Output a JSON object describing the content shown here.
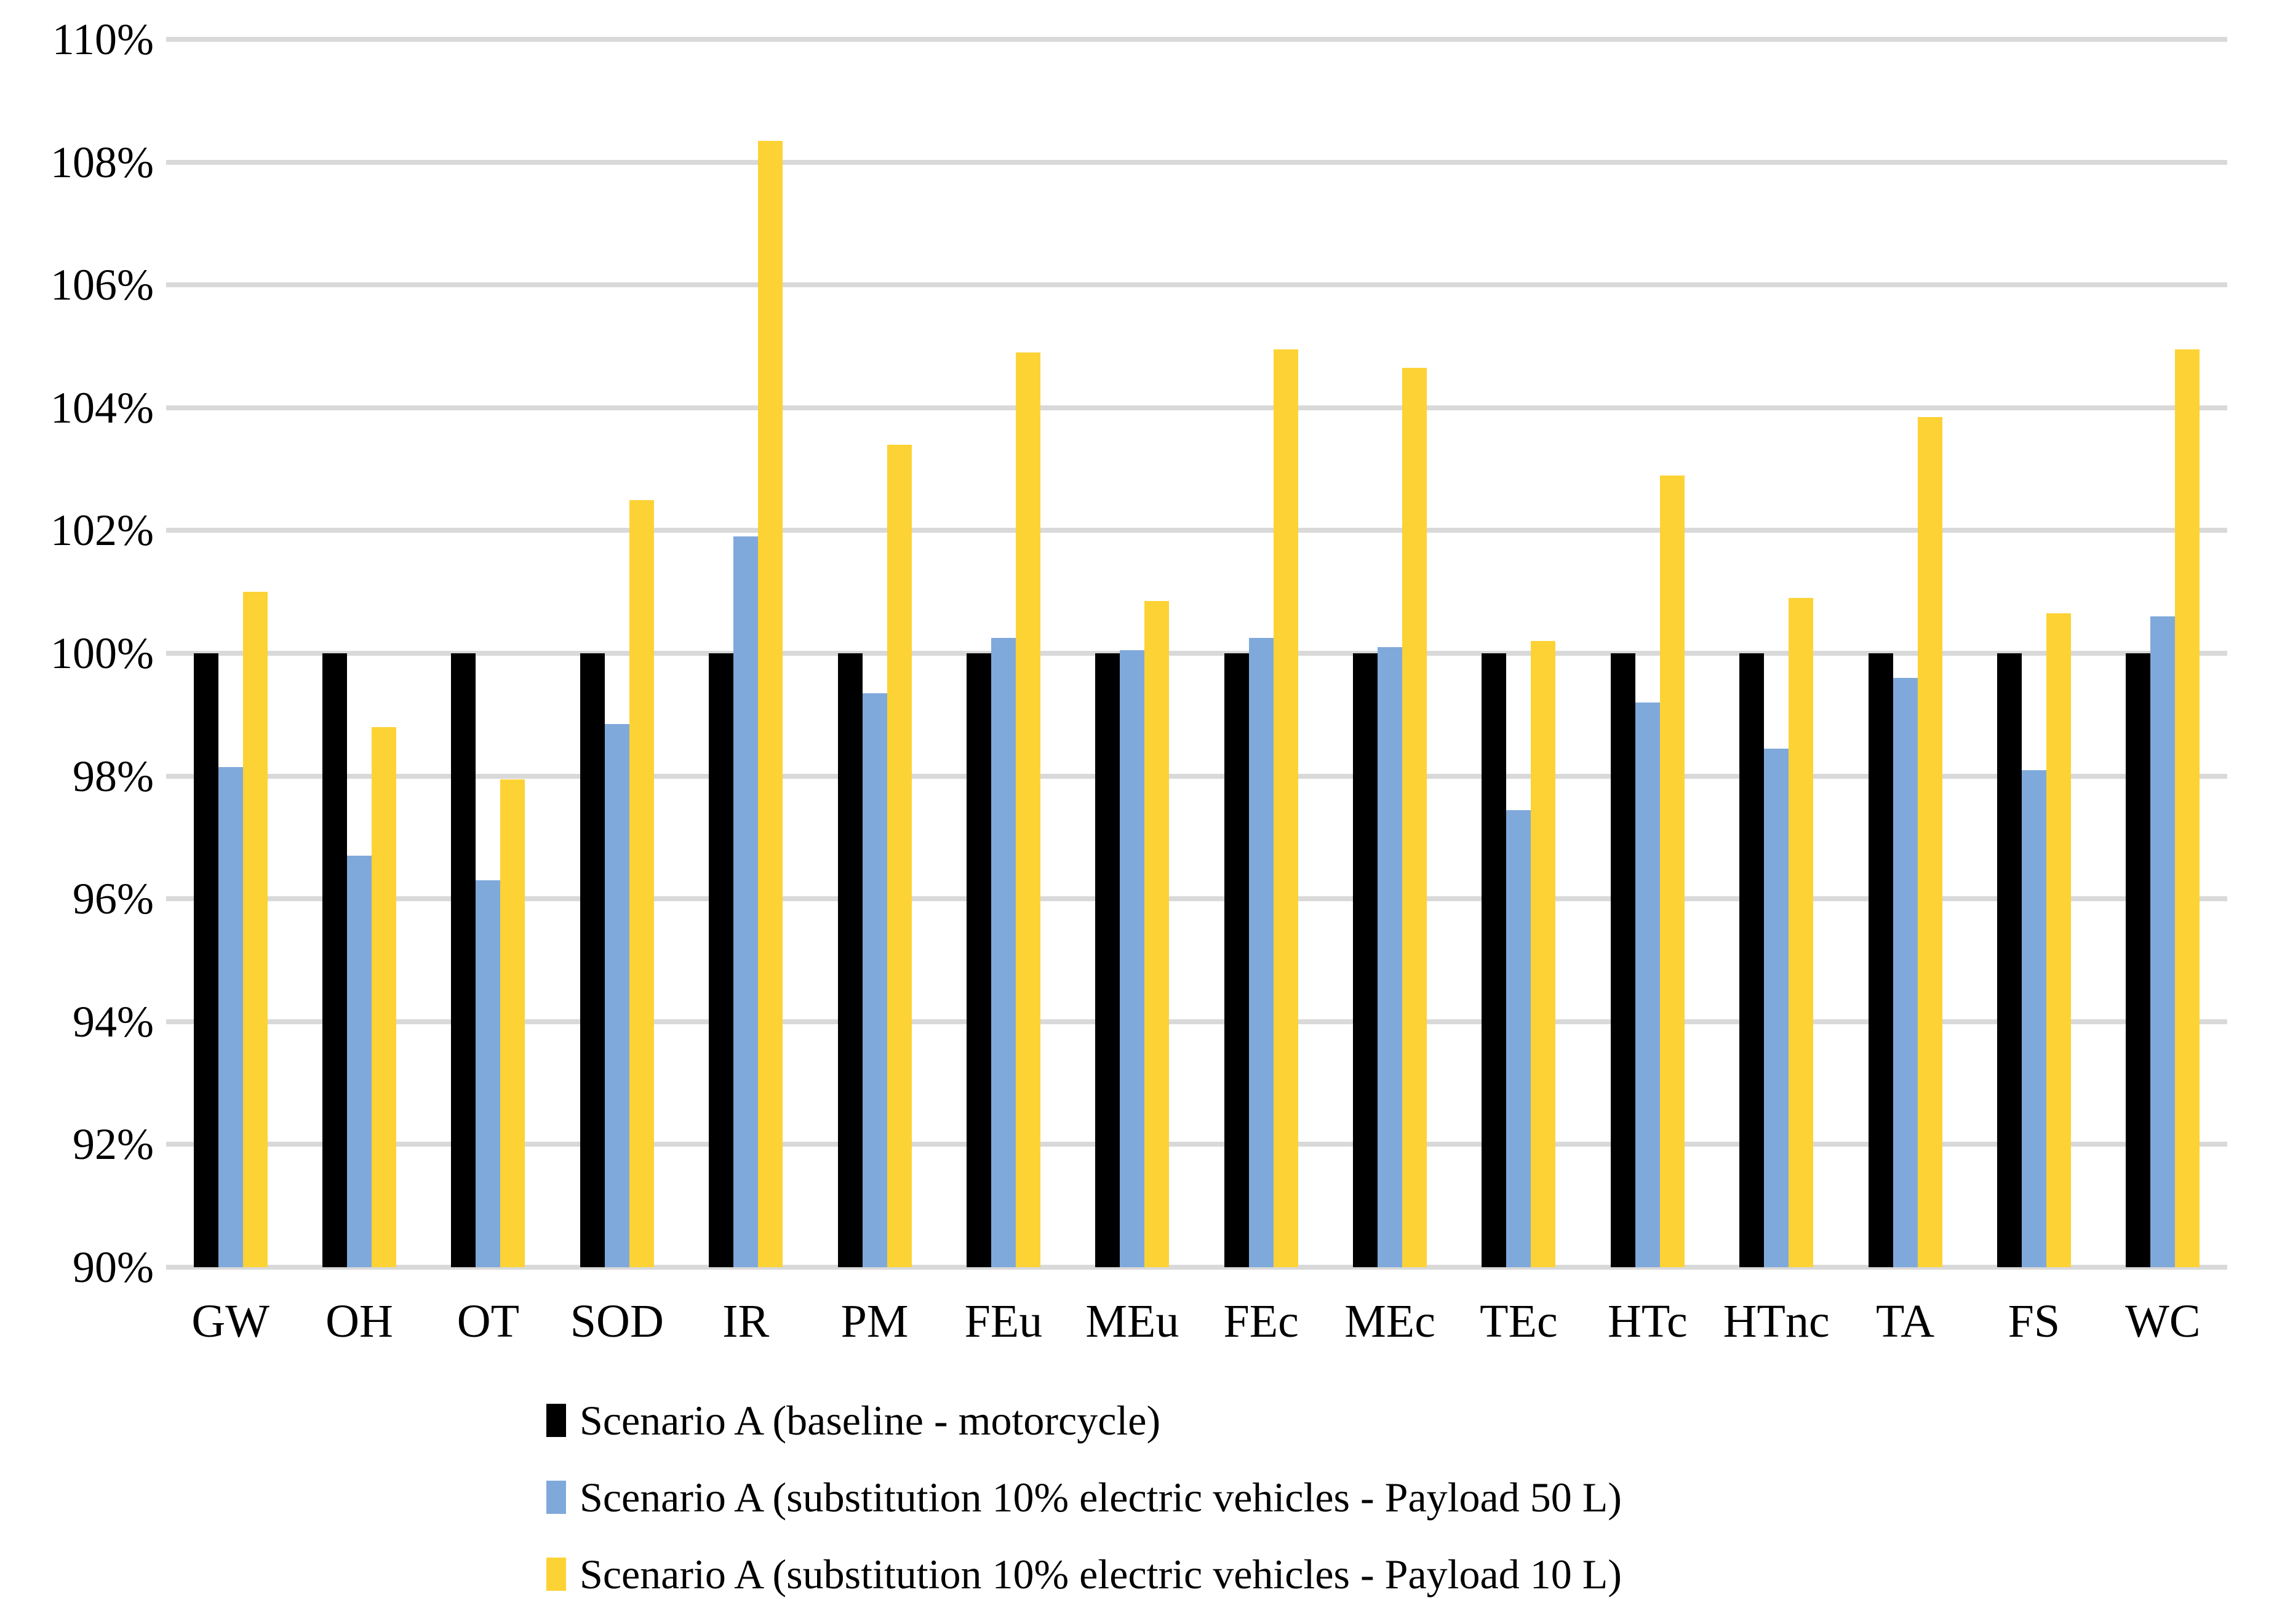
{
  "chart_data": {
    "type": "bar",
    "title": "",
    "xlabel": "",
    "ylabel": "",
    "categories": [
      "GW",
      "OH",
      "OT",
      "SOD",
      "IR",
      "PM",
      "FEu",
      "MEu",
      "FEc",
      "MEc",
      "TEc",
      "HTc",
      "HTnc",
      "TA",
      "FS",
      "WC"
    ],
    "series": [
      {
        "name": "Scenario A (baseline - motorcycle)",
        "color": "#000000",
        "values": [
          100,
          100,
          100,
          100,
          100,
          100,
          100,
          100,
          100,
          100,
          100,
          100,
          100,
          100,
          100,
          100
        ]
      },
      {
        "name": "Scenario A (substitution 10% electric vehicles - Payload 50 L)",
        "color": "#80A9DB",
        "values": [
          98.15,
          96.7,
          96.3,
          98.85,
          101.9,
          99.35,
          100.25,
          100.05,
          100.25,
          100.1,
          97.45,
          99.2,
          98.45,
          99.6,
          98.1,
          100.6
        ]
      },
      {
        "name": "Scenario A (substitution 10% electric vehicles - Payload 10 L)",
        "color": "#FDD234",
        "values": [
          101.0,
          98.8,
          97.95,
          102.5,
          108.35,
          103.4,
          104.9,
          100.85,
          104.95,
          104.65,
          100.2,
          102.9,
          100.9,
          103.85,
          100.65,
          104.95
        ]
      }
    ],
    "ylim": [
      90,
      110
    ],
    "ytick_step": 2,
    "ytick_labels": [
      "90%",
      "92%",
      "94%",
      "96%",
      "98%",
      "100%",
      "102%",
      "104%",
      "106%",
      "108%",
      "110%"
    ],
    "grid": true,
    "gridline_color": "#d9d9d9",
    "legend_position": "bottom-left"
  },
  "colors": {
    "background": "#ffffff",
    "gridline": "#d9d9d9",
    "text": "#000000"
  }
}
